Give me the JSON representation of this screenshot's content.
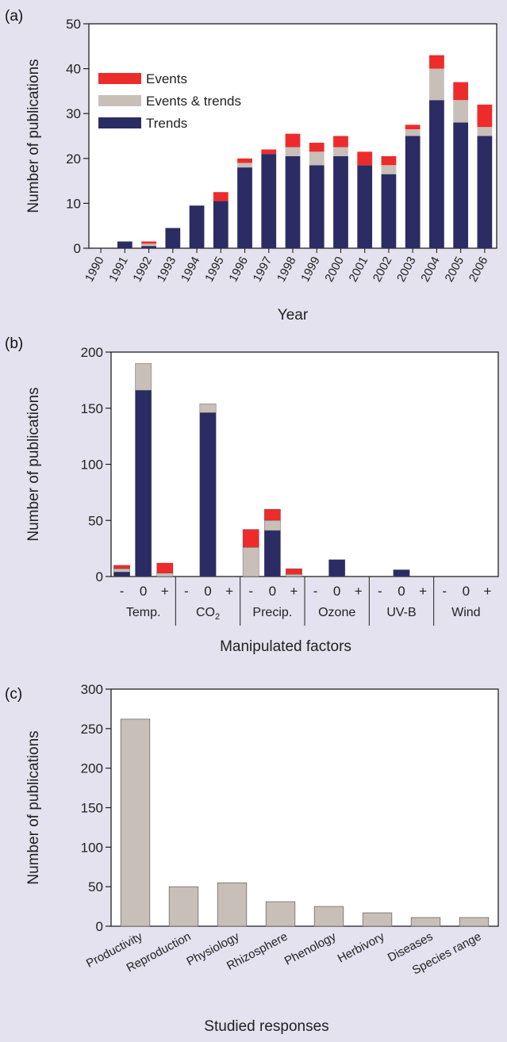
{
  "colors": {
    "background": "#e3e2ee",
    "trends": "#2b2c64",
    "events_trends": "#c7bfb8",
    "events": "#ee2b2b",
    "bars_c": "#c7bfb8"
  },
  "chart_data": [
    {
      "panel_label": "(a)",
      "type": "bar",
      "stacked": true,
      "xlabel": "Year",
      "ylabel": "Number of publications",
      "ylim": [
        0,
        50
      ],
      "yticks": [
        0,
        10,
        20,
        30,
        40,
        50
      ],
      "legend_position": "upper-left",
      "categories": [
        "1990",
        "1991",
        "1992",
        "1993",
        "1994",
        "1995",
        "1996",
        "1997",
        "1998",
        "1999",
        "2000",
        "2001",
        "2002",
        "2003",
        "2004",
        "2005",
        "2006"
      ],
      "series": [
        {
          "name": "Trends",
          "color_key": "trends",
          "values": [
            0,
            1.5,
            0.5,
            4.5,
            9.5,
            10.5,
            18,
            21,
            20.5,
            18.5,
            20.5,
            18.5,
            16.5,
            25,
            33,
            28,
            25
          ]
        },
        {
          "name": "Events & trends",
          "color_key": "events_trends",
          "values": [
            0,
            0,
            0.5,
            0,
            0,
            0,
            1,
            0,
            2,
            3,
            2,
            0,
            2,
            1.5,
            7,
            5,
            2
          ]
        },
        {
          "name": "Events",
          "color_key": "events",
          "values": [
            0,
            0,
            0.5,
            0,
            0,
            2,
            1,
            1,
            3,
            2,
            2.5,
            3,
            2,
            1,
            3,
            4,
            5
          ]
        }
      ],
      "legend_order": [
        "Events",
        "Events & trends",
        "Trends"
      ]
    },
    {
      "panel_label": "(b)",
      "type": "bar",
      "stacked": true,
      "xlabel": "Manipulated factors",
      "ylabel": "Number of publications",
      "ylim": [
        0,
        200
      ],
      "yticks": [
        0,
        50,
        100,
        150,
        200
      ],
      "groups": [
        {
          "label": "Temp.",
          "bars": [
            {
              "tick": "-",
              "trends": 4,
              "events_trends": 3,
              "events": 3
            },
            {
              "tick": "0",
              "trends": 166,
              "events_trends": 24,
              "events": 0
            },
            {
              "tick": "+",
              "trends": 0,
              "events_trends": 3,
              "events": 9
            }
          ]
        },
        {
          "label": "CO2",
          "bars": [
            {
              "tick": "-",
              "trends": 0,
              "events_trends": 0,
              "events": 0
            },
            {
              "tick": "0",
              "trends": 146,
              "events_trends": 8,
              "events": 0
            },
            {
              "tick": "+",
              "trends": 0,
              "events_trends": 0,
              "events": 0
            }
          ]
        },
        {
          "label": "Precip.",
          "bars": [
            {
              "tick": "-",
              "trends": 0,
              "events_trends": 26,
              "events": 16
            },
            {
              "tick": "0",
              "trends": 41,
              "events_trends": 9,
              "events": 10
            },
            {
              "tick": "+",
              "trends": 0,
              "events_trends": 2,
              "events": 5
            }
          ]
        },
        {
          "label": "Ozone",
          "bars": [
            {
              "tick": "-",
              "trends": 0,
              "events_trends": 0,
              "events": 0
            },
            {
              "tick": "0",
              "trends": 15,
              "events_trends": 0,
              "events": 0
            },
            {
              "tick": "+",
              "trends": 0,
              "events_trends": 0,
              "events": 0
            }
          ]
        },
        {
          "label": "UV-B",
          "bars": [
            {
              "tick": "-",
              "trends": 0,
              "events_trends": 0,
              "events": 0
            },
            {
              "tick": "0",
              "trends": 6,
              "events_trends": 0,
              "events": 0
            },
            {
              "tick": "+",
              "trends": 0,
              "events_trends": 0,
              "events": 0
            }
          ]
        },
        {
          "label": "Wind",
          "bars": [
            {
              "tick": "-",
              "trends": 0,
              "events_trends": 0,
              "events": 0
            },
            {
              "tick": "0",
              "trends": 0,
              "events_trends": 0,
              "events": 0
            },
            {
              "tick": "+",
              "trends": 0,
              "events_trends": 0,
              "events": 0
            }
          ]
        }
      ]
    },
    {
      "panel_label": "(c)",
      "type": "bar",
      "xlabel": "Studied responses",
      "ylabel": "Number of publications",
      "ylim": [
        0,
        300
      ],
      "yticks": [
        0,
        50,
        100,
        150,
        200,
        250,
        300
      ],
      "categories": [
        "Productivity",
        "Reproduction",
        "Physiology",
        "Rhizosphere",
        "Phenology",
        "Herbivory",
        "Diseases",
        "Species range"
      ],
      "values": [
        262,
        50,
        55,
        31,
        25,
        17,
        11,
        11
      ]
    }
  ]
}
